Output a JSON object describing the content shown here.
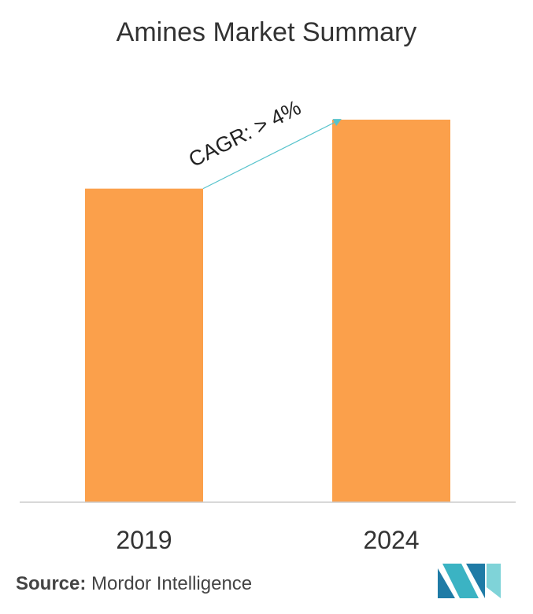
{
  "chart_data": {
    "type": "bar",
    "title": "Amines Market Summary",
    "categories": [
      "2019",
      "2024"
    ],
    "values": [
      100,
      122
    ],
    "ylim": [
      0,
      122
    ],
    "xlabel": "",
    "ylabel": "",
    "grid": false,
    "legend": "none",
    "annotation": "CAGR: > 4%",
    "bar_color": "#FBA04B",
    "arrow_color": "#56C3CC"
  },
  "source": {
    "label": "Source:",
    "text": "Mordor Intelligence"
  },
  "logo": {
    "icon": "mordor-intelligence-logo-icon",
    "colors": [
      "#1F7BA6",
      "#3BB3C3",
      "#7FD3D8"
    ]
  }
}
